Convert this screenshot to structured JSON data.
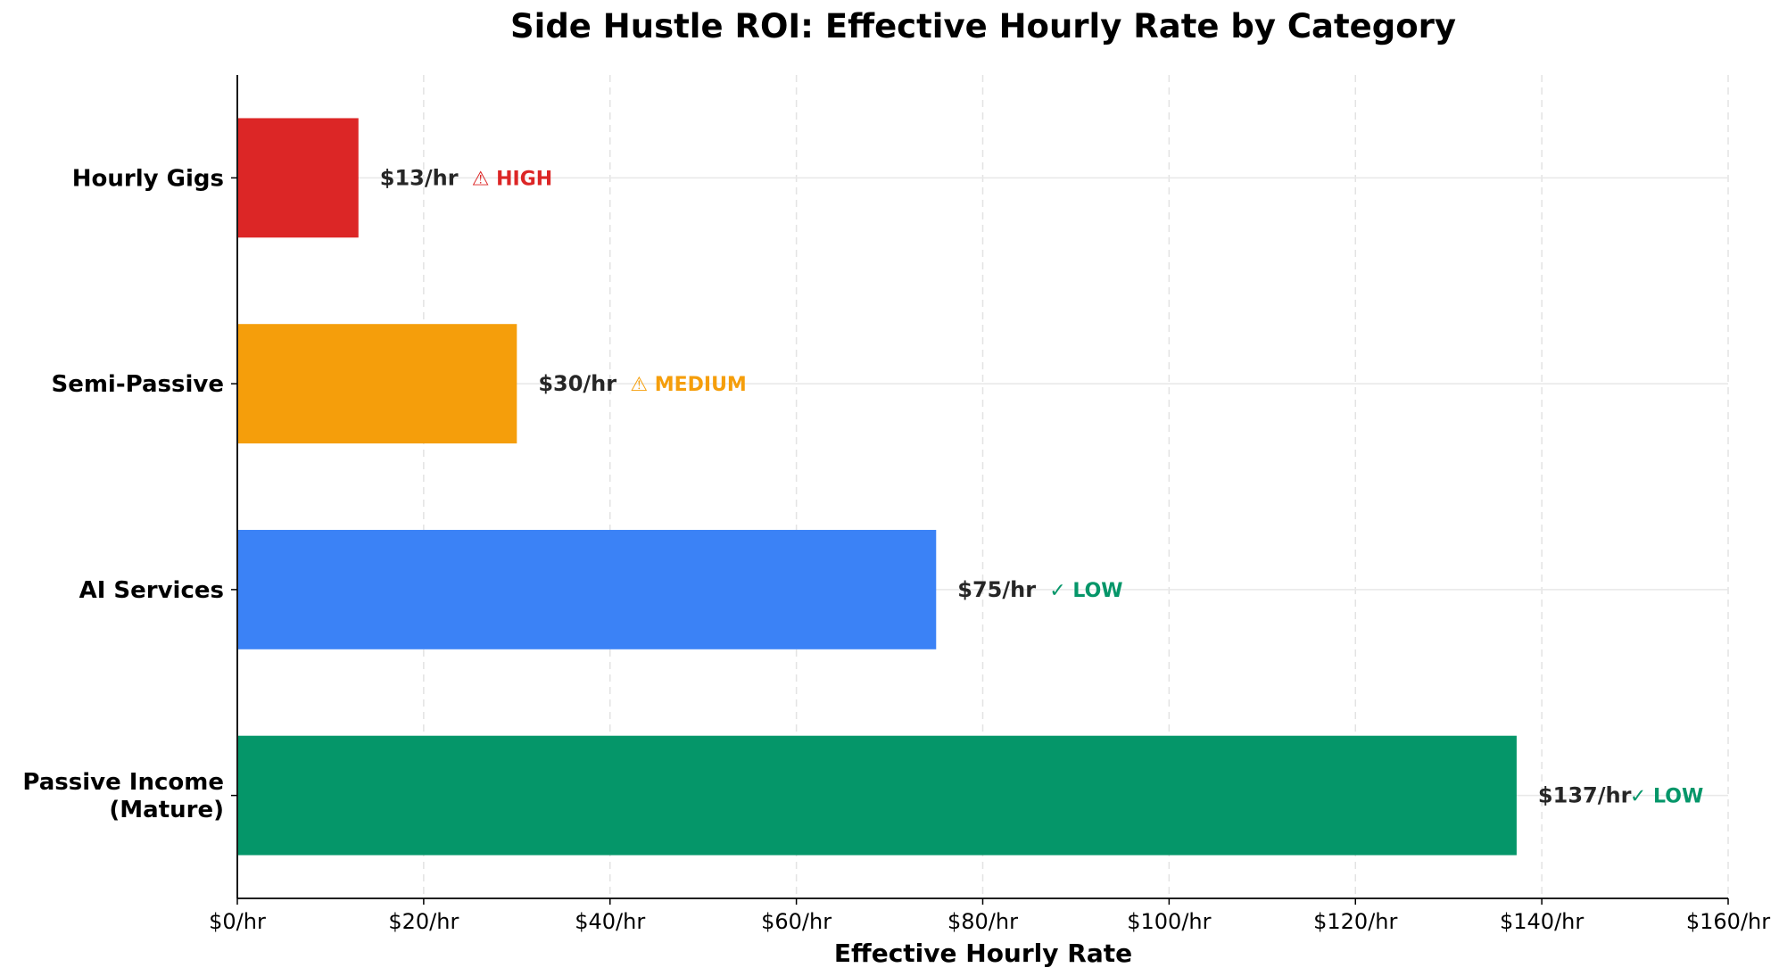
{
  "chart_data": {
    "type": "bar",
    "orientation": "horizontal",
    "title": "Side Hustle ROI: Effective Hourly Rate by Category",
    "xlabel": "Effective Hourly Rate",
    "ylabel": "",
    "xlim": [
      0,
      160
    ],
    "x_ticks": [
      0,
      20,
      40,
      60,
      80,
      100,
      120,
      140,
      160
    ],
    "x_tick_labels": [
      "$0/hr",
      "$20/hr",
      "$40/hr",
      "$60/hr",
      "$80/hr",
      "$100/hr",
      "$120/hr",
      "$140/hr",
      "$160/hr"
    ],
    "grid": true,
    "categories": [
      [
        "Hourly Gigs"
      ],
      [
        "Semi-Passive"
      ],
      [
        "AI Services"
      ],
      [
        "Passive Income",
        "(Mature)"
      ]
    ],
    "values": [
      13,
      30,
      75,
      137.3
    ],
    "value_labels": [
      "$13/hr",
      "$30/hr",
      "$75/hr",
      "$137/hr"
    ],
    "risk_labels": [
      "⚠ HIGH",
      "⚠ MEDIUM",
      "✓ LOW",
      "✓ LOW"
    ],
    "colors": [
      "#dc2626",
      "#f59e0b",
      "#3b82f6",
      "#059669"
    ],
    "risk_colors": [
      "#dc2626",
      "#f59e0b",
      "#059669",
      "#059669"
    ]
  }
}
